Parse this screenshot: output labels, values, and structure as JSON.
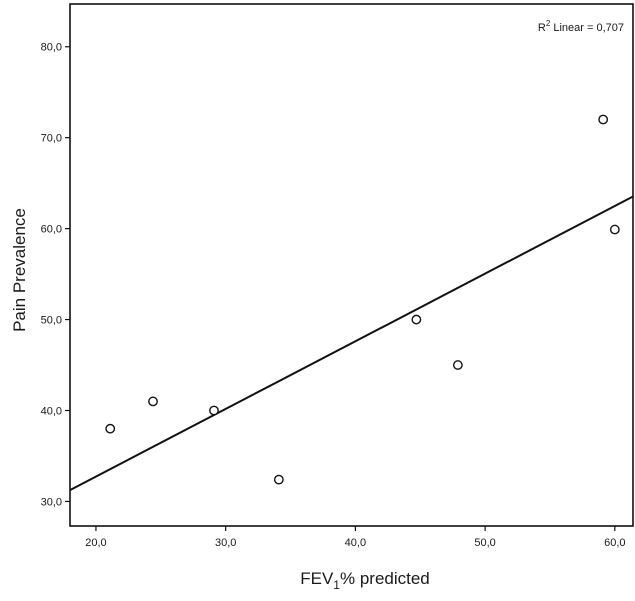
{
  "chart_data": {
    "type": "scatter",
    "xlabel_main": "FEV",
    "xlabel_sub": "1",
    "xlabel_rest": "% predicted",
    "ylabel": "Pain Prevalence",
    "annotation_prefix": "R",
    "annotation_sup": "2",
    "annotation_rest": " Linear = 0,707",
    "xlim": [
      18.0,
      61.4
    ],
    "ylim": [
      27.3,
      84.7
    ],
    "x_ticks": [
      20.0,
      30.0,
      40.0,
      50.0,
      60.0
    ],
    "x_tick_labels": [
      "20,0",
      "30,0",
      "40,0",
      "50,0",
      "60,0"
    ],
    "y_ticks": [
      30.0,
      40.0,
      50.0,
      60.0,
      70.0,
      80.0
    ],
    "y_tick_labels": [
      "30,0",
      "40,0",
      "50,0",
      "60,0",
      "70,0",
      "80,0"
    ],
    "points": [
      {
        "x": 21.1,
        "y": 38.0
      },
      {
        "x": 24.4,
        "y": 41.0
      },
      {
        "x": 29.1,
        "y": 40.0
      },
      {
        "x": 34.1,
        "y": 32.4
      },
      {
        "x": 44.7,
        "y": 50.0
      },
      {
        "x": 47.9,
        "y": 45.0
      },
      {
        "x": 59.1,
        "y": 72.0
      },
      {
        "x": 60.0,
        "y": 59.9
      }
    ],
    "fit_line": {
      "slope": 0.744,
      "intercept": 17.85
    },
    "grid": false,
    "legend": "none"
  }
}
